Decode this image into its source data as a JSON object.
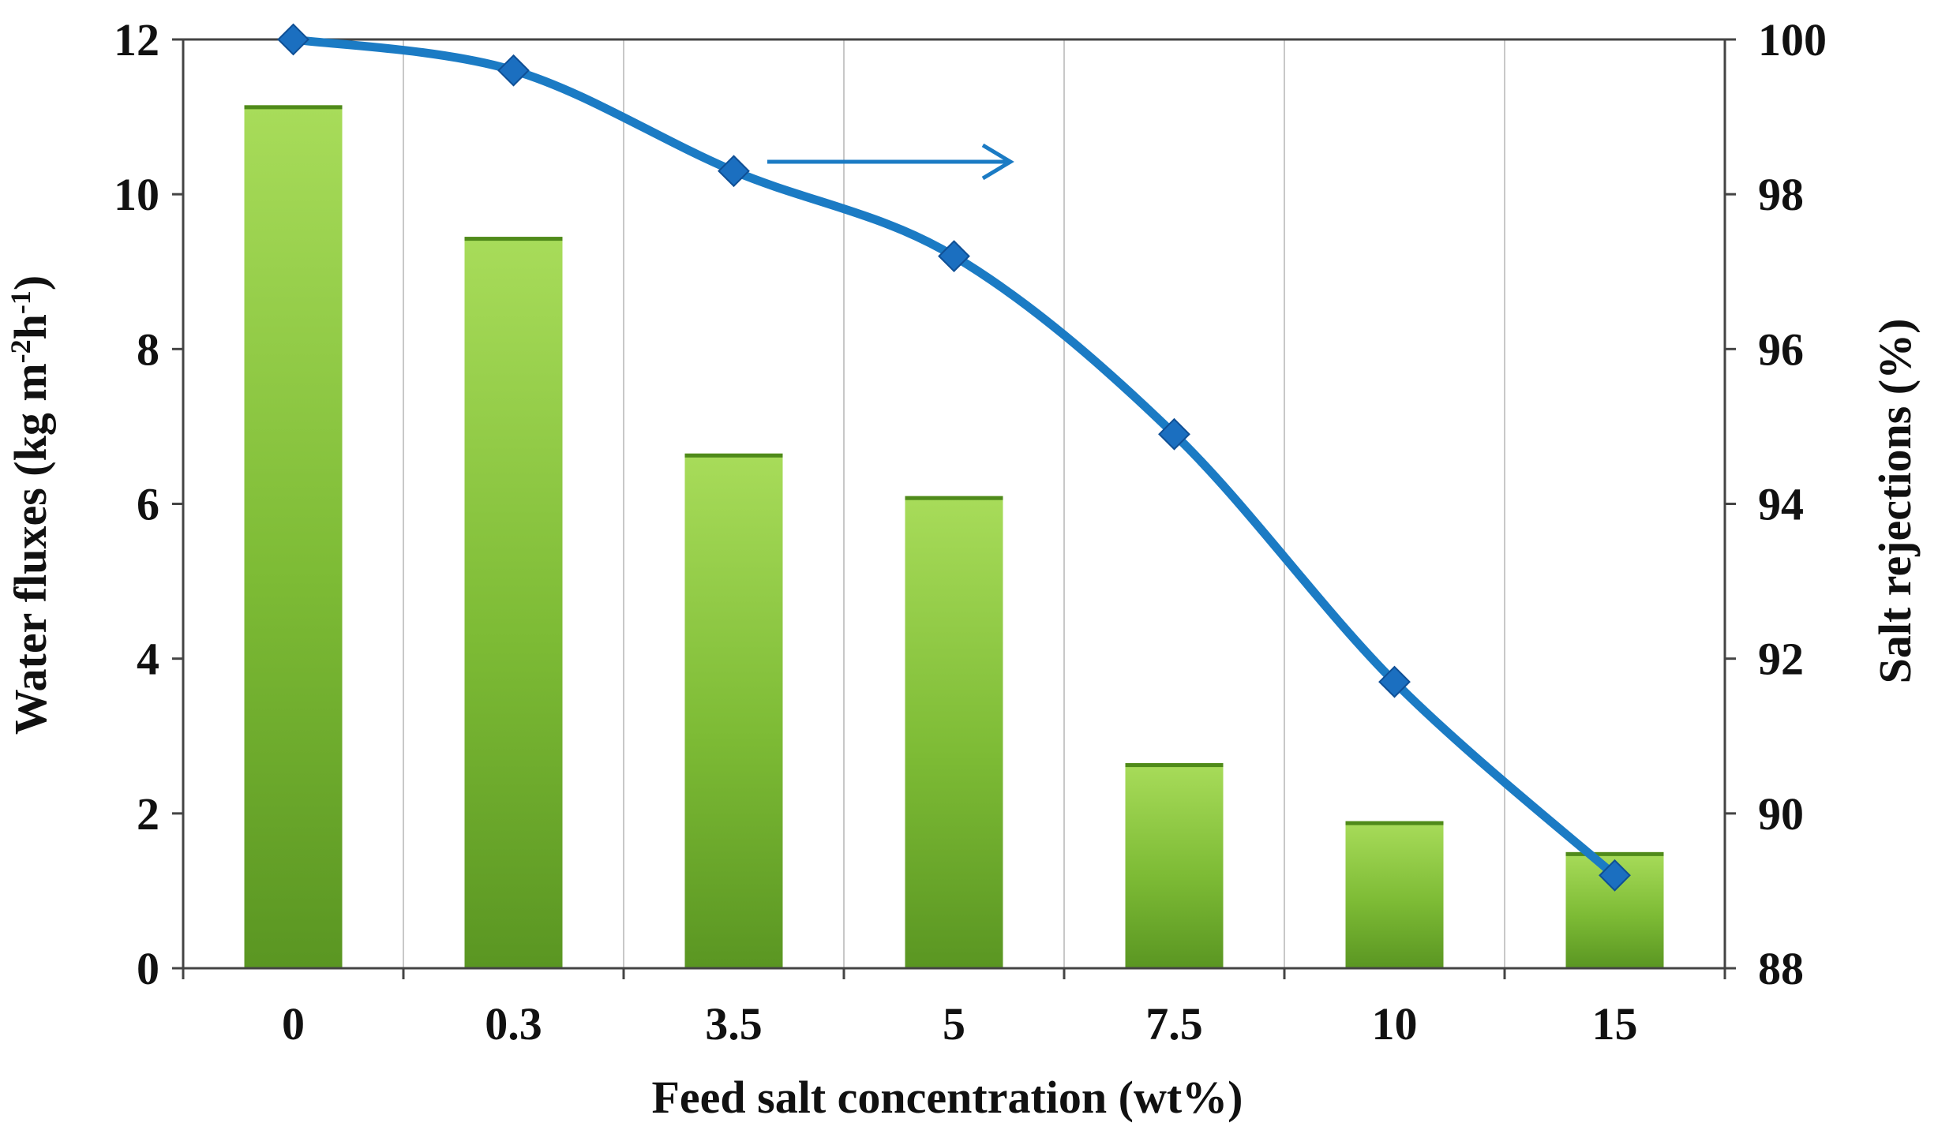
{
  "chart_data": {
    "type": "bar+line",
    "categories": [
      "0",
      "0.3",
      "3.5",
      "5",
      "7.5",
      "10",
      "15"
    ],
    "series": [
      {
        "name": "Water fluxes",
        "type": "bar",
        "axis": "left",
        "values": [
          11.15,
          9.45,
          6.65,
          6.1,
          2.65,
          1.9,
          1.5
        ]
      },
      {
        "name": "Salt rejections",
        "type": "line",
        "axis": "right",
        "values": [
          100,
          99.6,
          98.3,
          97.2,
          94.9,
          91.7,
          89.2
        ]
      }
    ],
    "xlabel": "Feed salt concentration (wt%)",
    "ylabel": {
      "prefix": "Water fluxes (kg m",
      "sup1": "-2",
      "mid": "h",
      "sup2": "-1",
      "suffix": ")"
    },
    "y2label": "Salt rejections (%)",
    "ylim": [
      0,
      12
    ],
    "yticks": [
      "0",
      "2",
      "4",
      "6",
      "8",
      "10",
      "12"
    ],
    "y2lim": [
      88,
      100
    ],
    "y2ticks": [
      "88",
      "90",
      "92",
      "94",
      "96",
      "98",
      "100"
    ],
    "grid": "vertical",
    "annotation": "arrow pointing right (line uses right axis)",
    "colors": {
      "bar_light": "#9bd250",
      "bar_dark": "#5a9a1e",
      "line": "#1b7bc4",
      "marker": "#1b6fc0"
    }
  }
}
